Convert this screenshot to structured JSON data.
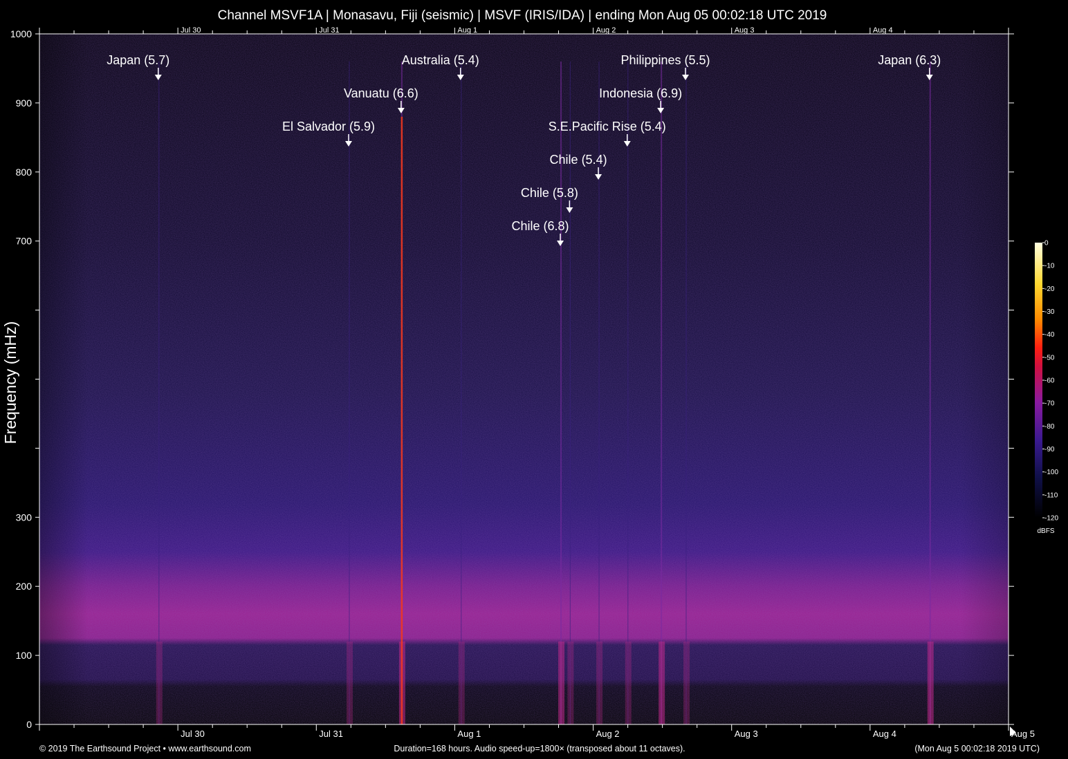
{
  "chart_data": {
    "type": "heatmap",
    "title": "Channel MSVF1A | Monasavu, Fiji (seismic) | MSVF (IRIS/IDA) | ending Mon Aug 05 00:02:18 UTC 2019",
    "ylabel": "Frequency (mHz)",
    "xlabel": "",
    "ylim": [
      0,
      1000
    ],
    "xlim_hours": [
      0,
      168
    ],
    "y_ticks": [
      {
        "v": 0,
        "label": "0"
      },
      {
        "v": 100,
        "label": "100"
      },
      {
        "v": 200,
        "label": "200"
      },
      {
        "v": 300,
        "label": "300"
      },
      {
        "v": 400,
        "label": ""
      },
      {
        "v": 500,
        "label": ""
      },
      {
        "v": 600,
        "label": ""
      },
      {
        "v": 700,
        "label": "700"
      },
      {
        "v": 800,
        "label": "800"
      },
      {
        "v": 900,
        "label": "900"
      },
      {
        "v": 1000,
        "label": "1000"
      }
    ],
    "x_day_ticks": [
      {
        "h": 24,
        "label": "Jul 30"
      },
      {
        "h": 48,
        "label": "Jul 31"
      },
      {
        "h": 72,
        "label": "Aug  1"
      },
      {
        "h": 96,
        "label": "Aug  2"
      },
      {
        "h": 120,
        "label": "Aug  3"
      },
      {
        "h": 144,
        "label": "Aug  4"
      },
      {
        "h": 168,
        "label": "Aug  5"
      }
    ],
    "x_minor_step_hours": 6,
    "events": [
      {
        "label": "Japan (5.7)",
        "h": 20.6,
        "row": 0
      },
      {
        "label": "Australia (5.4)",
        "h": 73.0,
        "row": 0
      },
      {
        "label": "Philippines (5.5)",
        "h": 112.0,
        "row": 0
      },
      {
        "label": "Japan (6.3)",
        "h": 154.3,
        "row": 0
      },
      {
        "label": "Vanuatu (6.6)",
        "h": 62.7,
        "row": 1
      },
      {
        "label": "Indonesia (6.9)",
        "h": 107.7,
        "row": 1
      },
      {
        "label": "El Salvador (5.9)",
        "h": 53.6,
        "row": 2
      },
      {
        "label": "S.E.Pacific Rise (5.4)",
        "h": 101.9,
        "row": 2
      },
      {
        "label": "Chile (5.4)",
        "h": 96.9,
        "row": 3
      },
      {
        "label": "Chile (5.8)",
        "h": 91.9,
        "row": 4
      },
      {
        "label": "Chile (6.8)",
        "h": 90.3,
        "row": 5
      }
    ],
    "colorbar": {
      "unit": "dBFS",
      "ticks": [
        "0",
        "-10",
        "-20",
        "-30",
        "-40",
        "-50",
        "-60",
        "-70",
        "-80",
        "-90",
        "-100",
        "-110",
        "-120"
      ]
    }
  },
  "footer": {
    "left": "© 2019 The Earthsound Project • www.earthsound.com",
    "center": "Duration=168 hours. Audio speed-up=1800× (transposed about 11 octaves).",
    "right": "(Mon Aug  5 00:02:18 2019 UTC)"
  },
  "colors": {
    "background": "#000000",
    "axis": "#ffffff",
    "low_band": "#a0208e",
    "mid_band": "#2a127a",
    "event_line": "#ff3a10"
  }
}
